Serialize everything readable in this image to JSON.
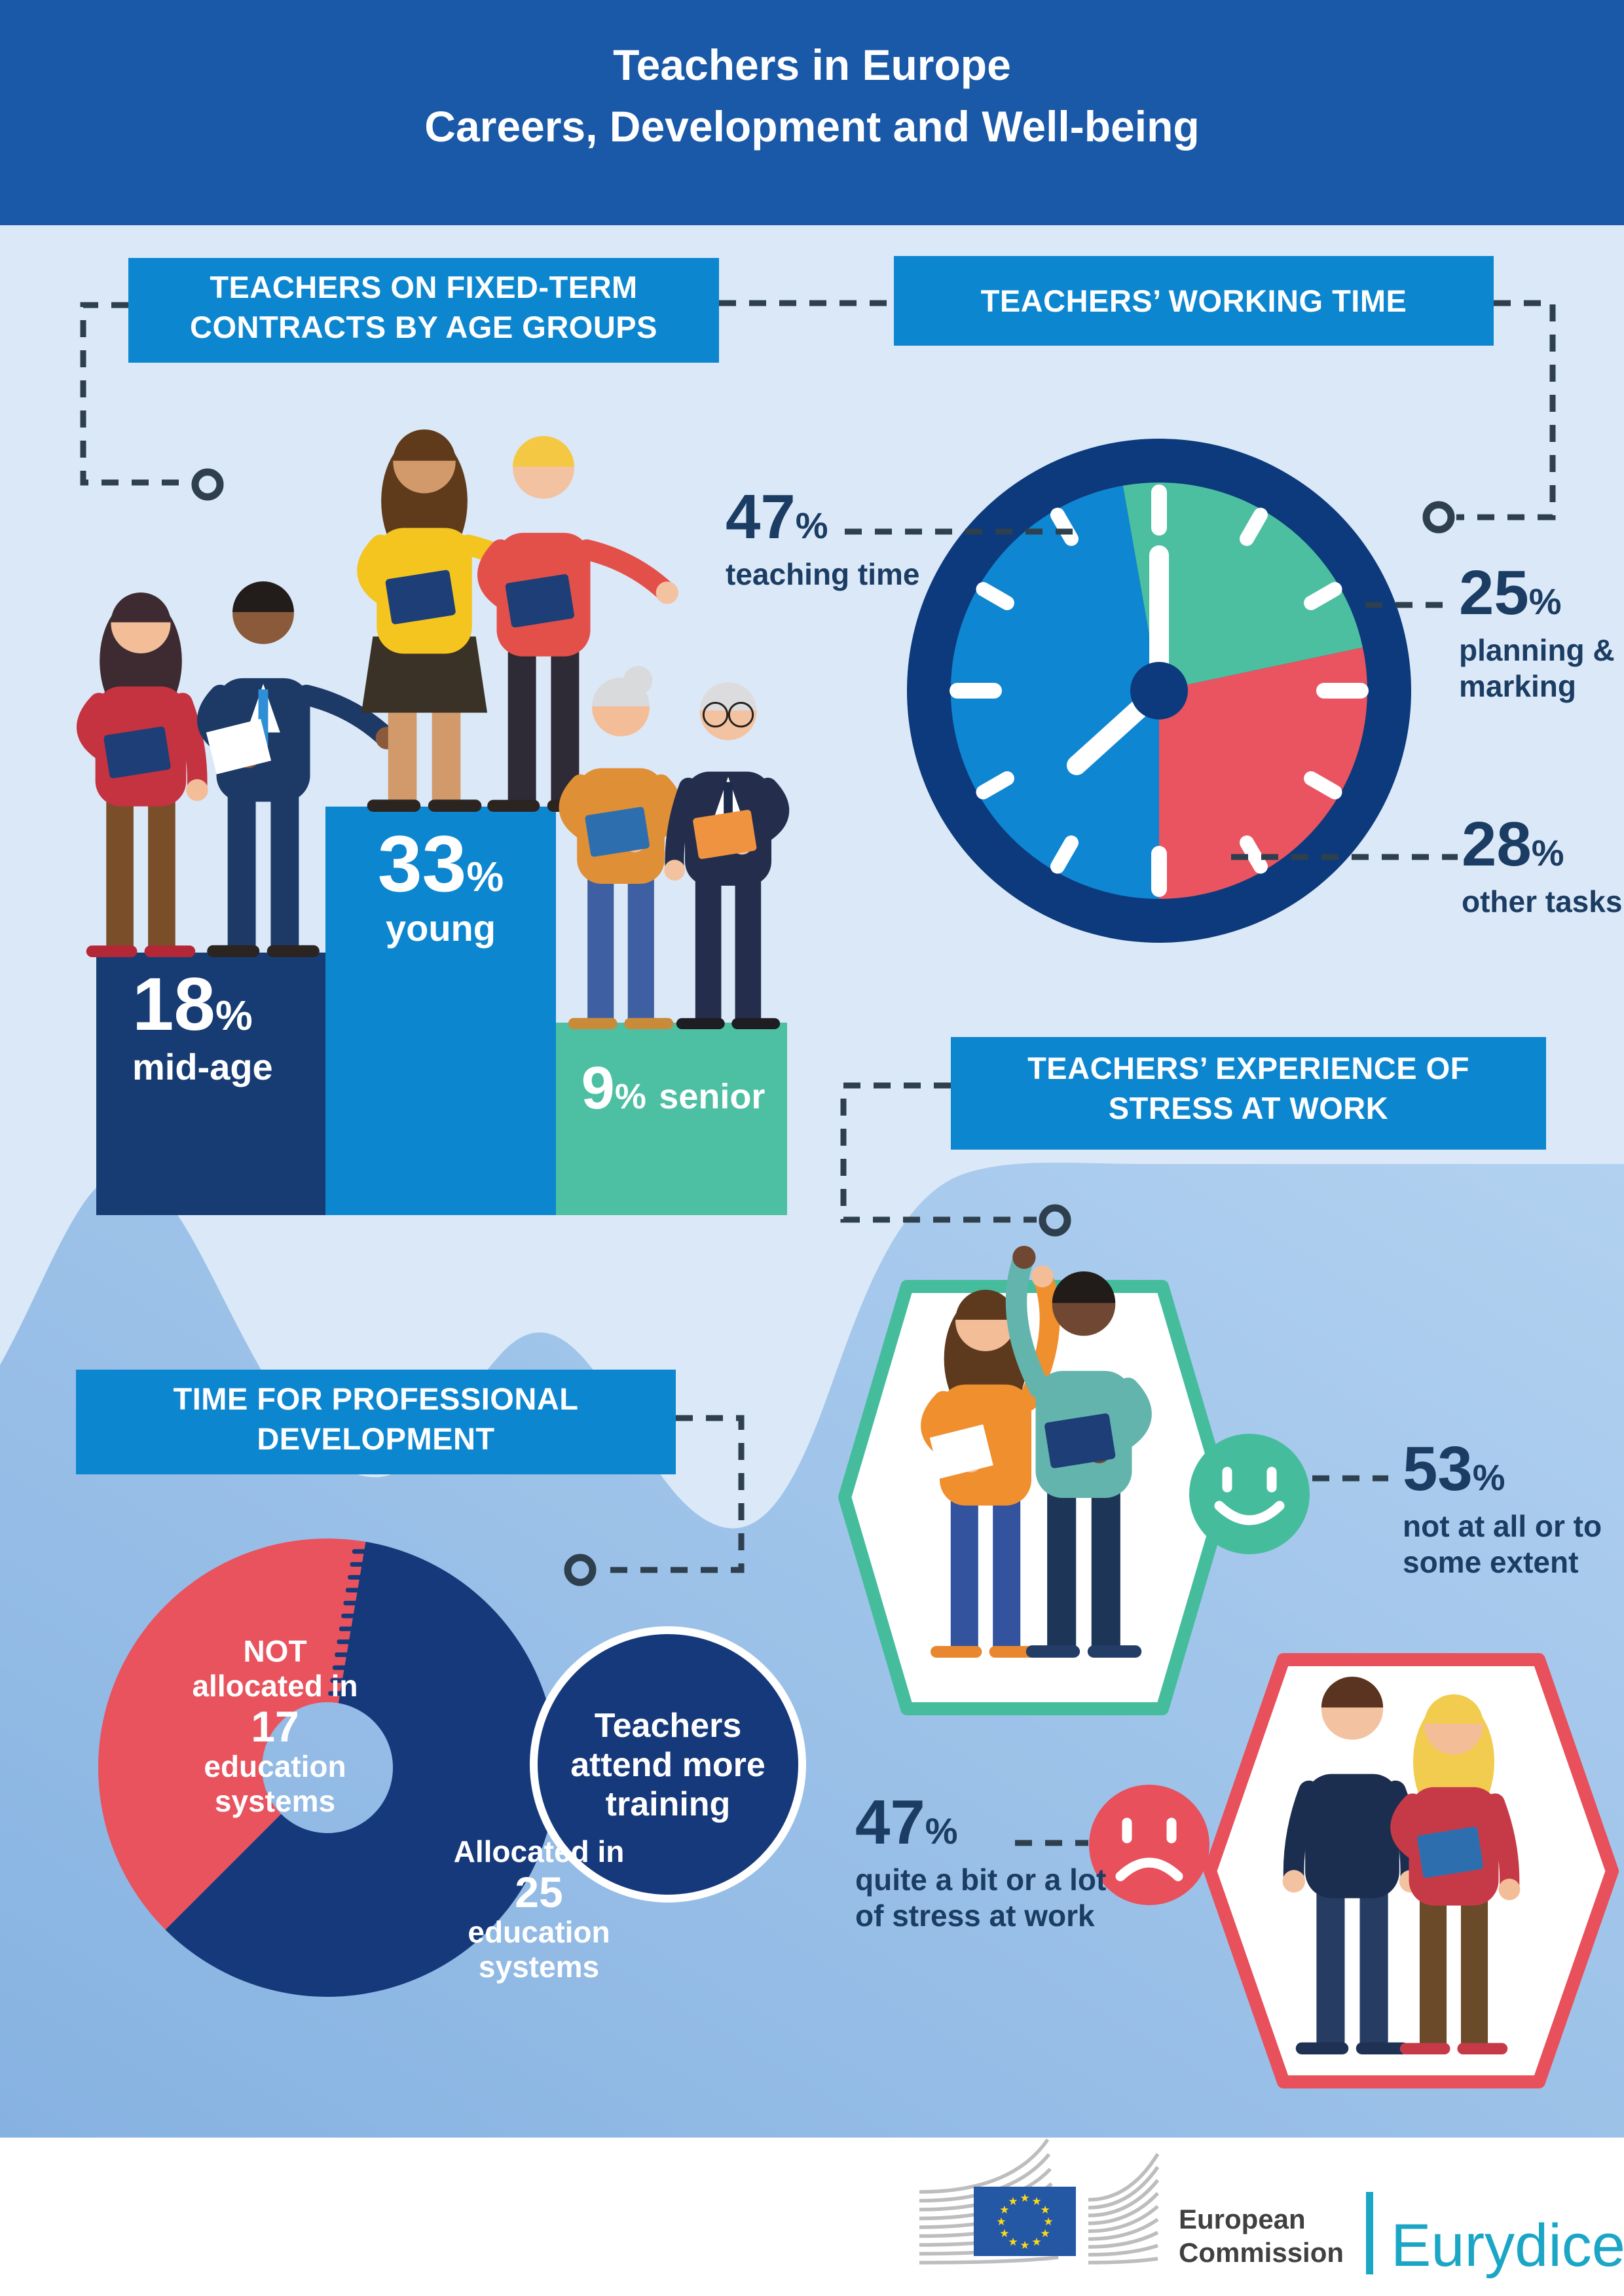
{
  "header": {
    "title_line1": "Teachers in Europe",
    "title_line2": "Careers, Development and Well-being"
  },
  "fixed_term": {
    "heading_line1": "TEACHERS ON FIXED-TERM",
    "heading_line2": "CONTRACTS BY AGE GROUPS",
    "bars": [
      {
        "value": "18",
        "suffix": "%",
        "label": "mid-age"
      },
      {
        "value": "33",
        "suffix": "%",
        "label": "young"
      },
      {
        "value": "9",
        "suffix": "%",
        "label": "senior"
      }
    ]
  },
  "working_time": {
    "heading": "TEACHERS’ WORKING TIME",
    "teaching": {
      "value": "47",
      "suffix": "%",
      "label": "teaching time"
    },
    "planning": {
      "value": "25",
      "suffix": "%",
      "label_line1": "planning &",
      "label_line2": "marking"
    },
    "other": {
      "value": "28",
      "suffix": "%",
      "label": "other tasks"
    }
  },
  "stress": {
    "heading_line1": "TEACHERS’ EXPERIENCE OF",
    "heading_line2": "STRESS AT WORK",
    "positive": {
      "value": "53",
      "suffix": "%",
      "label_line1": "not at all or to",
      "label_line2": "some extent"
    },
    "negative": {
      "value": "47",
      "suffix": "%",
      "label_line1": "quite a bit or a lot",
      "label_line2": "of stress at work"
    }
  },
  "development": {
    "heading_line1": "TIME FOR PROFESSIONAL",
    "heading_line2": "DEVELOPMENT",
    "not_allocated": {
      "line1": "NOT",
      "line2": "allocated in",
      "value": "17",
      "line3": "education",
      "line4": "systems"
    },
    "allocated": {
      "line1": "Allocated in",
      "value": "25",
      "line2": "education",
      "line3": "systems"
    },
    "note_line1": "Teachers",
    "note_line2": "attend more",
    "note_line3": "training"
  },
  "footer": {
    "org_line1": "European",
    "org_line2": "Commission",
    "brand": "Eurydice"
  },
  "colors": {
    "header_bg": "#1a58a8",
    "section_heading_bg": "#0d86d0",
    "navy": "#16397b",
    "bright_blue": "#0d86d0",
    "teal": "#45bd9d",
    "red": "#e8505b",
    "dark_text": "#1b3c63",
    "wave_blue": "#8cb8e4",
    "eurydice_teal": "#1ba6c6"
  },
  "chart_data": [
    {
      "type": "bar",
      "title": "Teachers on fixed-term contracts by age groups",
      "categories": [
        "mid-age",
        "young",
        "senior"
      ],
      "values": [
        18,
        33,
        9
      ],
      "unit": "%",
      "bar_colors": [
        "#173c74",
        "#0d86d0",
        "#4dbfa2"
      ],
      "value_labels_inside_bars": true
    },
    {
      "type": "pie",
      "title": "Teachers’ working time",
      "labels": [
        "teaching time",
        "planning & marking",
        "other tasks"
      ],
      "values": [
        47,
        25,
        28
      ],
      "unit": "%",
      "colors": [
        "#0f86d2",
        "#4cbfa0",
        "#ea5460"
      ],
      "style": "clock face with hands"
    },
    {
      "type": "pie",
      "title": "Teachers’ experience of stress at work",
      "labels": [
        "not at all or to some extent",
        "quite a bit or a lot of stress at work"
      ],
      "values": [
        53,
        47
      ],
      "unit": "%",
      "colors": [
        "#45bd9d",
        "#e8505b"
      ]
    },
    {
      "type": "pie",
      "title": "Time for professional development",
      "labels": [
        "NOT allocated",
        "Allocated"
      ],
      "values": [
        17,
        25
      ],
      "unit": "education systems",
      "colors": [
        "#e8535e",
        "#16397b"
      ],
      "annotation": "Teachers attend more training"
    }
  ]
}
